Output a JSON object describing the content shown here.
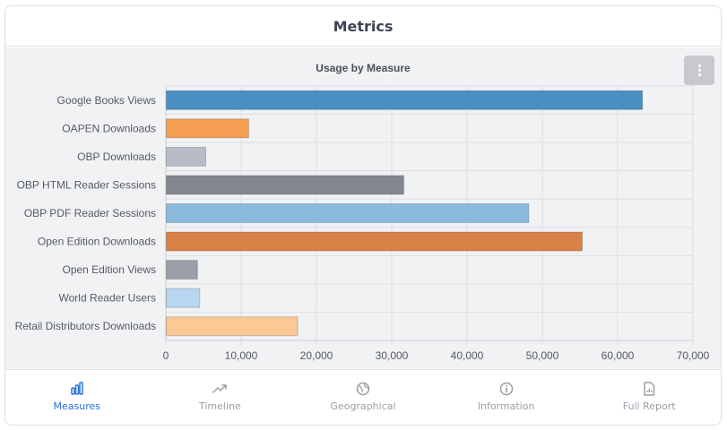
{
  "header": {
    "title": "Metrics"
  },
  "tabs": [
    {
      "label": "Measures",
      "icon": "bar-chart-icon",
      "active": true
    },
    {
      "label": "Timeline",
      "icon": "trending-up-icon",
      "active": false
    },
    {
      "label": "Geographical",
      "icon": "globe-icon",
      "active": false
    },
    {
      "label": "Information",
      "icon": "info-icon",
      "active": false
    },
    {
      "label": "Full Report",
      "icon": "report-icon",
      "active": false
    }
  ],
  "colors": {
    "active": "#2a6fdb",
    "inactive": "#9aa0a8"
  },
  "chart_data": {
    "type": "bar",
    "orientation": "horizontal",
    "title": "Usage by Measure",
    "xlabel": "",
    "ylabel": "",
    "grid": true,
    "xlim": [
      0,
      70000
    ],
    "xticks": [
      0,
      10000,
      20000,
      30000,
      40000,
      50000,
      60000,
      70000
    ],
    "xtick_labels": [
      "0",
      "10,000",
      "20,000",
      "30,000",
      "40,000",
      "50,000",
      "60,000",
      "70,000"
    ],
    "categories": [
      "Google Books Views",
      "OAPEN Downloads",
      "OBP Downloads",
      "OBP HTML Reader Sessions",
      "OBP PDF Reader Sessions",
      "Open Edition Downloads",
      "Open Edition Views",
      "World Reader Users",
      "Retail Distributors Downloads"
    ],
    "values": [
      63300,
      11000,
      5300,
      31600,
      48200,
      55300,
      4200,
      4500,
      17500
    ],
    "colors": [
      "#4a8fc2",
      "#f59d52",
      "#b9bcc6",
      "#84878f",
      "#8abbdf",
      "#d98247",
      "#9a9fa8",
      "#b8d6ef",
      "#fbc896"
    ]
  }
}
